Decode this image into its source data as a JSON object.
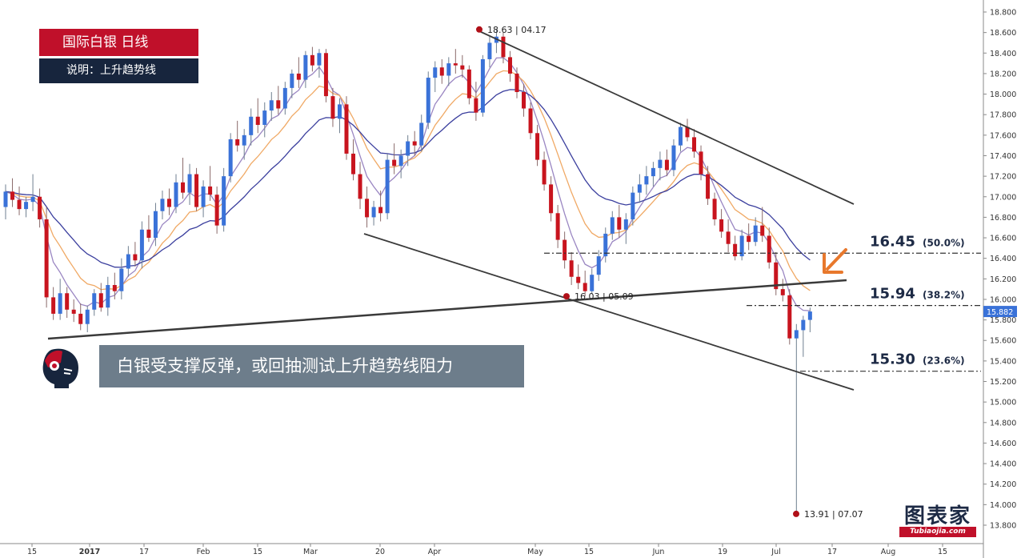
{
  "header": {
    "title": "国际白银  日线",
    "subtitle": "说明：上升趋势线"
  },
  "banner": {
    "text": "白银受支撑反弹，或回抽测试上升趋势线阻力"
  },
  "logo": {
    "text": "图表家",
    "sub": "Tubiaojia.com"
  },
  "colors": {
    "bull": "#3a72d8",
    "bear": "#c8141e",
    "ma_fast": "#9a86c2",
    "ma_mid": "#f0a965",
    "ma_slow": "#3b3f9e",
    "trend": "#3a3a3a",
    "accent": "#e8782c"
  },
  "chart_data": {
    "type": "candlestick",
    "y_axis": {
      "min": 13.8,
      "max": 18.8,
      "step": 0.2,
      "ticks": [
        "18.800",
        "18.600",
        "18.400",
        "18.200",
        "18.000",
        "17.800",
        "17.600",
        "17.400",
        "17.200",
        "17.000",
        "16.800",
        "16.600",
        "16.400",
        "16.200",
        "16.000",
        "15.800",
        "15.600",
        "15.400",
        "15.200",
        "15.000",
        "14.800",
        "14.600",
        "14.400",
        "14.200",
        "14.000",
        "13.800"
      ]
    },
    "x_axis": {
      "ticks": [
        "15",
        "2017",
        "17",
        "Feb",
        "15",
        "Mar",
        "20",
        "Apr",
        "May",
        "15",
        "Jun",
        "19",
        "Jul",
        "17",
        "Aug",
        "15"
      ]
    },
    "current_price": "15.882",
    "annotations": [
      {
        "label": "18.63 | 04.17",
        "price": 18.63
      },
      {
        "label": "16.03 | 05.09",
        "price": 16.03
      },
      {
        "label": "13.91 | 07.07",
        "price": 13.91
      }
    ],
    "fib_levels": [
      {
        "price": 16.45,
        "label": "16.45",
        "pct": "(50.0%)"
      },
      {
        "price": 15.94,
        "label": "15.94",
        "pct": "(38.2%)"
      },
      {
        "price": 15.3,
        "label": "15.30",
        "pct": "(23.6%)"
      }
    ],
    "candles": [
      [
        16.9,
        17.12,
        16.78,
        17.05
      ],
      [
        17.05,
        17.18,
        16.9,
        16.97
      ],
      [
        16.97,
        17.1,
        16.82,
        16.88
      ],
      [
        16.88,
        17.0,
        16.8,
        16.95
      ],
      [
        16.95,
        17.22,
        16.86,
        17.0
      ],
      [
        17.0,
        17.08,
        16.7,
        16.78
      ],
      [
        16.78,
        16.9,
        15.92,
        16.02
      ],
      [
        16.02,
        16.12,
        15.8,
        15.86
      ],
      [
        15.86,
        16.2,
        15.8,
        16.06
      ],
      [
        16.06,
        16.12,
        15.82,
        15.9
      ],
      [
        15.9,
        16.0,
        15.78,
        15.86
      ],
      [
        15.86,
        15.96,
        15.7,
        15.76
      ],
      [
        15.76,
        15.94,
        15.68,
        15.9
      ],
      [
        15.9,
        16.1,
        15.84,
        16.06
      ],
      [
        16.06,
        16.16,
        15.88,
        15.92
      ],
      [
        15.92,
        16.22,
        15.84,
        16.14
      ],
      [
        16.14,
        16.26,
        16.0,
        16.08
      ],
      [
        16.08,
        16.4,
        16.0,
        16.3
      ],
      [
        16.3,
        16.52,
        16.22,
        16.44
      ],
      [
        16.44,
        16.56,
        16.32,
        16.38
      ],
      [
        16.38,
        16.76,
        16.3,
        16.68
      ],
      [
        16.68,
        16.82,
        16.56,
        16.6
      ],
      [
        16.6,
        16.94,
        16.52,
        16.86
      ],
      [
        16.86,
        17.06,
        16.78,
        16.98
      ],
      [
        16.98,
        17.08,
        16.82,
        16.9
      ],
      [
        16.9,
        17.22,
        16.84,
        17.14
      ],
      [
        17.14,
        17.38,
        16.98,
        17.04
      ],
      [
        17.04,
        17.32,
        16.92,
        17.22
      ],
      [
        17.22,
        17.28,
        16.86,
        16.9
      ],
      [
        16.9,
        17.16,
        16.8,
        17.1
      ],
      [
        17.1,
        17.3,
        16.96,
        17.02
      ],
      [
        17.02,
        17.1,
        16.64,
        16.72
      ],
      [
        16.72,
        17.28,
        16.66,
        17.2
      ],
      [
        17.2,
        17.62,
        17.14,
        17.56
      ],
      [
        17.56,
        17.74,
        17.44,
        17.5
      ],
      [
        17.5,
        17.66,
        17.36,
        17.6
      ],
      [
        17.6,
        17.86,
        17.5,
        17.78
      ],
      [
        17.78,
        17.96,
        17.62,
        17.7
      ],
      [
        17.7,
        17.92,
        17.58,
        17.84
      ],
      [
        17.84,
        18.02,
        17.74,
        17.94
      ],
      [
        17.94,
        18.08,
        17.8,
        17.86
      ],
      [
        17.86,
        18.12,
        17.8,
        18.06
      ],
      [
        18.06,
        18.24,
        17.96,
        18.2
      ],
      [
        18.2,
        18.36,
        18.06,
        18.14
      ],
      [
        18.14,
        18.42,
        18.06,
        18.38
      ],
      [
        18.38,
        18.46,
        18.22,
        18.28
      ],
      [
        18.28,
        18.44,
        18.16,
        18.4
      ],
      [
        18.4,
        18.44,
        17.92,
        17.98
      ],
      [
        17.98,
        18.06,
        17.68,
        17.76
      ],
      [
        17.76,
        17.96,
        17.62,
        17.9
      ],
      [
        17.9,
        17.98,
        17.36,
        17.42
      ],
      [
        17.42,
        17.56,
        17.16,
        17.22
      ],
      [
        17.22,
        17.34,
        16.88,
        16.98
      ],
      [
        16.98,
        17.1,
        16.7,
        16.8
      ],
      [
        16.8,
        16.96,
        16.72,
        16.9
      ],
      [
        16.9,
        17.06,
        16.76,
        16.84
      ],
      [
        16.84,
        17.42,
        16.78,
        17.36
      ],
      [
        17.36,
        17.52,
        17.22,
        17.3
      ],
      [
        17.3,
        17.46,
        17.18,
        17.4
      ],
      [
        17.4,
        17.6,
        17.3,
        17.54
      ],
      [
        17.54,
        17.64,
        17.4,
        17.5
      ],
      [
        17.5,
        17.8,
        17.44,
        17.72
      ],
      [
        17.72,
        18.22,
        17.66,
        18.16
      ],
      [
        18.16,
        18.32,
        18.02,
        18.26
      ],
      [
        18.26,
        18.34,
        18.1,
        18.18
      ],
      [
        18.18,
        18.36,
        18.08,
        18.3
      ],
      [
        18.3,
        18.44,
        18.2,
        18.28
      ],
      [
        18.28,
        18.38,
        18.16,
        18.24
      ],
      [
        18.24,
        18.28,
        17.9,
        17.96
      ],
      [
        17.96,
        18.12,
        17.74,
        17.82
      ],
      [
        17.82,
        18.38,
        17.78,
        18.34
      ],
      [
        18.34,
        18.56,
        18.26,
        18.5
      ],
      [
        18.5,
        18.63,
        18.4,
        18.56
      ],
      [
        18.56,
        18.6,
        18.3,
        18.36
      ],
      [
        18.36,
        18.42,
        18.12,
        18.2
      ],
      [
        18.2,
        18.26,
        17.96,
        18.02
      ],
      [
        18.02,
        18.1,
        17.78,
        17.86
      ],
      [
        17.86,
        17.92,
        17.56,
        17.62
      ],
      [
        17.62,
        17.7,
        17.3,
        17.36
      ],
      [
        17.36,
        17.44,
        17.06,
        17.12
      ],
      [
        17.12,
        17.2,
        16.76,
        16.84
      ],
      [
        16.84,
        16.92,
        16.5,
        16.58
      ],
      [
        16.58,
        16.66,
        16.3,
        16.38
      ],
      [
        16.38,
        16.46,
        16.14,
        16.22
      ],
      [
        16.22,
        16.34,
        16.1,
        16.16
      ],
      [
        16.16,
        16.28,
        16.03,
        16.08
      ],
      [
        16.08,
        16.3,
        16.05,
        16.24
      ],
      [
        16.24,
        16.48,
        16.18,
        16.42
      ],
      [
        16.42,
        16.7,
        16.36,
        16.64
      ],
      [
        16.64,
        16.86,
        16.58,
        16.8
      ],
      [
        16.8,
        16.92,
        16.6,
        16.68
      ],
      [
        16.68,
        16.84,
        16.54,
        16.78
      ],
      [
        16.78,
        17.1,
        16.72,
        17.04
      ],
      [
        17.04,
        17.22,
        16.94,
        17.12
      ],
      [
        17.12,
        17.3,
        17.02,
        17.2
      ],
      [
        17.2,
        17.34,
        17.1,
        17.28
      ],
      [
        17.28,
        17.44,
        17.16,
        17.36
      ],
      [
        17.36,
        17.46,
        17.2,
        17.26
      ],
      [
        17.26,
        17.56,
        17.2,
        17.5
      ],
      [
        17.5,
        17.72,
        17.44,
        17.68
      ],
      [
        17.68,
        17.76,
        17.54,
        17.58
      ],
      [
        17.58,
        17.66,
        17.38,
        17.44
      ],
      [
        17.44,
        17.5,
        17.16,
        17.22
      ],
      [
        17.22,
        17.3,
        16.92,
        16.98
      ],
      [
        16.98,
        17.04,
        16.72,
        16.78
      ],
      [
        16.78,
        16.88,
        16.6,
        16.66
      ],
      [
        16.66,
        16.78,
        16.46,
        16.54
      ],
      [
        16.54,
        16.62,
        16.38,
        16.42
      ],
      [
        16.42,
        16.68,
        16.38,
        16.62
      ],
      [
        16.62,
        16.74,
        16.48,
        16.56
      ],
      [
        16.56,
        16.8,
        16.52,
        16.72
      ],
      [
        16.72,
        16.9,
        16.56,
        16.62
      ],
      [
        16.62,
        16.7,
        16.3,
        16.36
      ],
      [
        16.36,
        16.46,
        16.04,
        16.1
      ],
      [
        16.1,
        16.2,
        15.98,
        16.04
      ],
      [
        16.04,
        16.1,
        15.56,
        15.62
      ],
      [
        15.62,
        15.76,
        13.91,
        15.7
      ],
      [
        15.7,
        15.84,
        15.44,
        15.8
      ],
      [
        15.8,
        15.92,
        15.68,
        15.882
      ]
    ]
  }
}
